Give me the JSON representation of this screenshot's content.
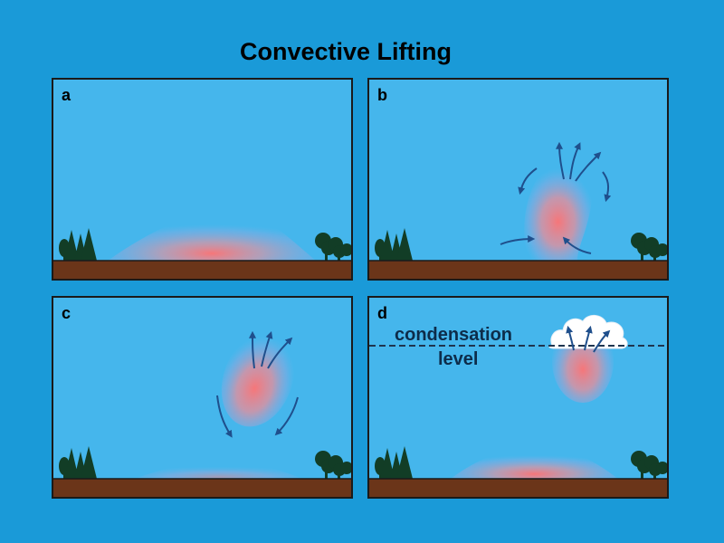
{
  "title": "Convective Lifting",
  "panels": [
    {
      "label": "a"
    },
    {
      "label": "b"
    },
    {
      "label": "c"
    },
    {
      "label": "d",
      "condensation_line1": "condensation",
      "condensation_line2": "level"
    }
  ],
  "colors": {
    "background": "#1a9ad8",
    "sky": "#45b6ec",
    "ground": "#6b3519",
    "trees": "#123d26",
    "warm_air": "#ff7f7f",
    "arrows": "#1f4f8c"
  }
}
